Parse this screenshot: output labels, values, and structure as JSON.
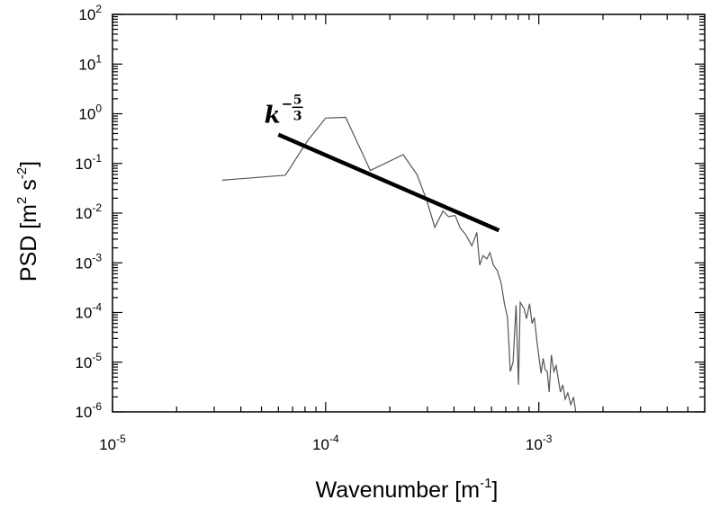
{
  "chart_data": {
    "type": "line",
    "x_scale": "log",
    "y_scale": "log",
    "xlim": [
      1e-05,
      0.006
    ],
    "ylim": [
      1e-06,
      100
    ],
    "xlabel": {
      "main": "Wavenumber [m",
      "sup": "-1",
      "close": "]"
    },
    "ylabel": {
      "main": "PSD [m",
      "sup1": "2",
      "mid": " s",
      "sup2": "-2",
      "close": "]"
    },
    "xticks": [
      {
        "value": 1e-05,
        "base": "10",
        "exp": "-5"
      },
      {
        "value": 0.0001,
        "base": "10",
        "exp": "-4"
      },
      {
        "value": 0.001,
        "base": "10",
        "exp": "-3"
      }
    ],
    "yticks": [
      {
        "value": 100,
        "base": "10",
        "exp": "2"
      },
      {
        "value": 10,
        "base": "10",
        "exp": "1"
      },
      {
        "value": 1,
        "base": "10",
        "exp": "0"
      },
      {
        "value": 0.1,
        "base": "10",
        "exp": "-1"
      },
      {
        "value": 0.01,
        "base": "10",
        "exp": "-2"
      },
      {
        "value": 0.001,
        "base": "10",
        "exp": "-3"
      },
      {
        "value": 0.0001,
        "base": "10",
        "exp": "-4"
      },
      {
        "value": 1e-05,
        "base": "10",
        "exp": "-5"
      },
      {
        "value": 1e-06,
        "base": "10",
        "exp": "-6"
      }
    ],
    "series": [
      {
        "color": "#555555",
        "points": [
          [
            3.27e-05,
            0.046
          ],
          [
            6.47e-05,
            0.058
          ],
          [
            8.2e-05,
            0.28
          ],
          [
            0.0001,
            0.82
          ],
          [
            0.000124,
            0.85
          ],
          [
            0.000162,
            0.072
          ],
          [
            0.000231,
            0.15
          ],
          [
            0.000268,
            0.06
          ],
          [
            0.000298,
            0.018
          ],
          [
            0.000325,
            0.0052
          ],
          [
            0.000355,
            0.011
          ],
          [
            0.000377,
            0.0085
          ],
          [
            0.000405,
            0.009
          ],
          [
            0.000428,
            0.005
          ],
          [
            0.000452,
            0.0038
          ],
          [
            0.000485,
            0.0022
          ],
          [
            0.000512,
            0.0041
          ],
          [
            0.000528,
            0.0009
          ],
          [
            0.000548,
            0.0014
          ],
          [
            0.00057,
            0.0012
          ],
          [
            0.00059,
            0.0016
          ],
          [
            0.000612,
            0.0009
          ],
          [
            0.000638,
            0.0007
          ],
          [
            0.000665,
            0.0004
          ],
          [
            0.00069,
            0.00015
          ],
          [
            0.000713,
            8e-05
          ],
          [
            0.000735,
            6.5e-06
          ],
          [
            0.000757,
            1e-05
          ],
          [
            0.000782,
            0.00014
          ],
          [
            0.000803,
            3.5e-06
          ],
          [
            0.000818,
            0.00016
          ],
          [
            0.000853,
            0.00012
          ],
          [
            0.000875,
            7.5e-05
          ],
          [
            0.000905,
            0.00015
          ],
          [
            0.00093,
            6e-05
          ],
          [
            0.000953,
            8e-05
          ],
          [
            0.00098,
            2.6e-05
          ],
          [
            0.001003,
            1.2e-05
          ],
          [
            0.001025,
            6e-06
          ],
          [
            0.001048,
            1.2e-05
          ],
          [
            0.001072,
            7e-06
          ],
          [
            0.001095,
            6.5e-06
          ],
          [
            0.001118,
            2.5e-06
          ],
          [
            0.001145,
            1.4e-05
          ],
          [
            0.001178,
            6.5e-06
          ],
          [
            0.001205,
            8.5e-06
          ],
          [
            0.00123,
            5e-06
          ],
          [
            0.001262,
            2.5e-06
          ],
          [
            0.001295,
            3.5e-06
          ],
          [
            0.00133,
            1.8e-06
          ],
          [
            0.001368,
            2.4e-06
          ],
          [
            0.001412,
            1.4e-06
          ],
          [
            0.001455,
            2e-06
          ],
          [
            0.00149,
            1e-06
          ]
        ]
      }
    ],
    "reference_line": {
      "color": "#000000",
      "points": [
        [
          6e-05,
          0.38
        ],
        [
          0.00065,
          0.0045
        ]
      ]
    },
    "annotation": {
      "base": "k",
      "exp_sign": "−",
      "exp_num": "5",
      "exp_den": "3",
      "at": [
        5.15e-05,
        1.05
      ]
    }
  }
}
